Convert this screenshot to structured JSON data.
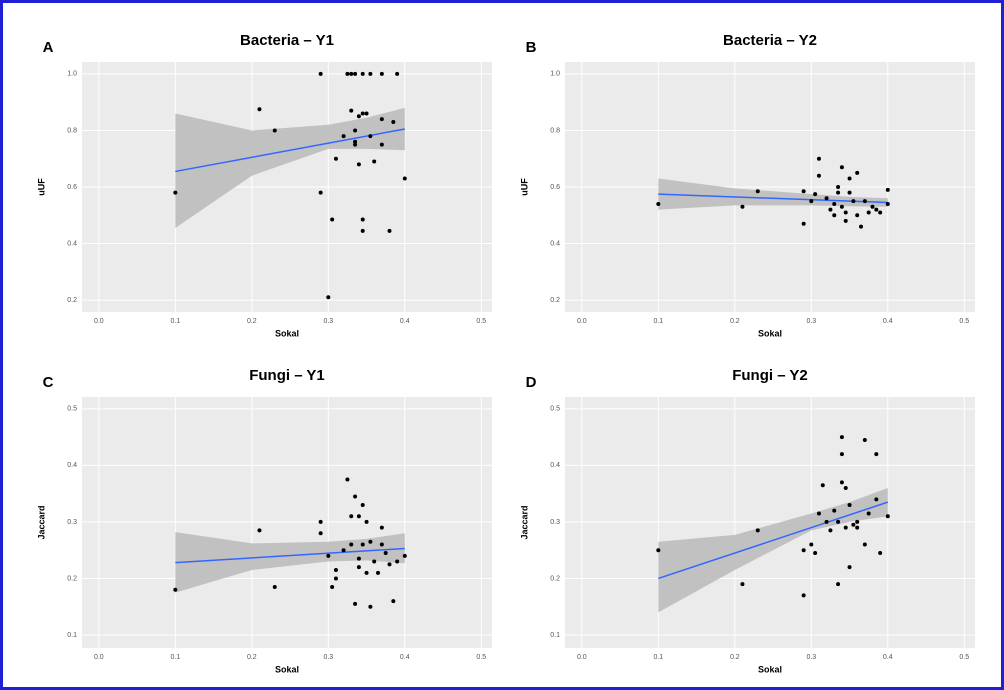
{
  "chart_data": [
    {
      "type": "scatter",
      "panel_label": "A",
      "title": "Bacteria – Y1",
      "x_label": "Sokal",
      "y_label": "uUF",
      "xlim": [
        -0.022,
        0.514
      ],
      "ylim": [
        0.158,
        1.042
      ],
      "xticks": [
        {
          "value": 0,
          "label": "0.0"
        },
        0.1,
        0.2,
        0.3,
        0.4,
        0.5
      ],
      "yticks": [
        0.2,
        0.4,
        0.6,
        0.8,
        {
          "value": 1,
          "label": "1.0"
        }
      ],
      "grid": true,
      "point_color": "#000000",
      "line_color": "#3366ff",
      "band_color": "#bdbdbd",
      "x": [
        0.1,
        0.21,
        0.23,
        0.29,
        0.29,
        0.3,
        0.305,
        0.31,
        0.32,
        0.325,
        0.33,
        0.33,
        0.335,
        0.335,
        0.335,
        0.335,
        0.34,
        0.34,
        0.345,
        0.345,
        0.345,
        0.345,
        0.35,
        0.355,
        0.355,
        0.36,
        0.37,
        0.37,
        0.37,
        0.38,
        0.385,
        0.39,
        0.4
      ],
      "values": [
        0.58,
        0.875,
        0.8,
        1.0,
        0.58,
        0.21,
        0.485,
        0.7,
        0.78,
        1.0,
        1.0,
        0.87,
        1.0,
        0.8,
        0.76,
        0.75,
        0.85,
        0.68,
        1.0,
        0.86,
        0.485,
        0.445,
        0.86,
        1.0,
        0.78,
        0.69,
        1.0,
        0.84,
        0.75,
        0.445,
        0.83,
        1.0,
        0.63
      ],
      "fit_x": [
        0.1,
        0.4
      ],
      "fit_values": [
        0.655,
        0.805
      ],
      "band_x": [
        0.1,
        0.2,
        0.3,
        0.35,
        0.4
      ],
      "band_lower": [
        0.455,
        0.64,
        0.735,
        0.735,
        0.73
      ],
      "band_upper": [
        0.86,
        0.8,
        0.82,
        0.845,
        0.88
      ]
    },
    {
      "type": "scatter",
      "panel_label": "B",
      "title": "Bacteria – Y2",
      "x_label": "Sokal",
      "y_label": "uUF",
      "xlim": [
        -0.022,
        0.514
      ],
      "ylim": [
        0.158,
        1.042
      ],
      "xticks": [
        {
          "value": 0,
          "label": "0.0"
        },
        0.1,
        0.2,
        0.3,
        0.4,
        0.5
      ],
      "yticks": [
        0.2,
        0.4,
        0.6,
        0.8,
        {
          "value": 1,
          "label": "1.0"
        }
      ],
      "grid": true,
      "point_color": "#000000",
      "line_color": "#3366ff",
      "band_color": "#bdbdbd",
      "x": [
        0.1,
        0.21,
        0.23,
        0.29,
        0.29,
        0.3,
        0.305,
        0.31,
        0.31,
        0.32,
        0.325,
        0.33,
        0.33,
        0.335,
        0.335,
        0.34,
        0.34,
        0.345,
        0.345,
        0.35,
        0.35,
        0.355,
        0.36,
        0.36,
        0.365,
        0.37,
        0.375,
        0.38,
        0.385,
        0.39,
        0.4,
        0.4
      ],
      "values": [
        0.54,
        0.53,
        0.585,
        0.585,
        0.47,
        0.55,
        0.575,
        0.7,
        0.64,
        0.56,
        0.52,
        0.5,
        0.54,
        0.58,
        0.6,
        0.67,
        0.53,
        0.48,
        0.51,
        0.58,
        0.63,
        0.55,
        0.65,
        0.5,
        0.46,
        0.55,
        0.51,
        0.53,
        0.52,
        0.51,
        0.59,
        0.54
      ],
      "fit_x": [
        0.1,
        0.4
      ],
      "fit_values": [
        0.575,
        0.545
      ],
      "band_x": [
        0.1,
        0.2,
        0.3,
        0.35,
        0.4
      ],
      "band_lower": [
        0.52,
        0.535,
        0.535,
        0.532,
        0.53
      ],
      "band_upper": [
        0.63,
        0.595,
        0.575,
        0.565,
        0.56
      ]
    },
    {
      "type": "scatter",
      "panel_label": "C",
      "title": "Fungi – Y1",
      "x_label": "Sokal",
      "y_label": "Jaccard",
      "xlim": [
        -0.022,
        0.514
      ],
      "ylim": [
        0.077,
        0.521
      ],
      "xticks": [
        {
          "value": 0,
          "label": "0.0"
        },
        0.1,
        0.2,
        0.3,
        0.4,
        0.5
      ],
      "yticks": [
        0.1,
        0.2,
        0.3,
        0.4,
        0.5
      ],
      "grid": true,
      "point_color": "#000000",
      "line_color": "#3366ff",
      "band_color": "#bdbdbd",
      "x": [
        0.1,
        0.21,
        0.23,
        0.29,
        0.29,
        0.3,
        0.305,
        0.31,
        0.31,
        0.32,
        0.325,
        0.33,
        0.33,
        0.335,
        0.335,
        0.34,
        0.34,
        0.34,
        0.345,
        0.345,
        0.35,
        0.35,
        0.355,
        0.355,
        0.36,
        0.365,
        0.37,
        0.37,
        0.375,
        0.38,
        0.385,
        0.39,
        0.4
      ],
      "values": [
        0.18,
        0.285,
        0.185,
        0.3,
        0.28,
        0.24,
        0.185,
        0.215,
        0.2,
        0.25,
        0.375,
        0.31,
        0.26,
        0.155,
        0.345,
        0.31,
        0.22,
        0.235,
        0.33,
        0.26,
        0.21,
        0.3,
        0.15,
        0.265,
        0.23,
        0.21,
        0.29,
        0.26,
        0.245,
        0.225,
        0.16,
        0.23,
        0.24
      ],
      "fit_x": [
        0.1,
        0.4
      ],
      "fit_values": [
        0.228,
        0.253
      ],
      "band_x": [
        0.1,
        0.2,
        0.3,
        0.35,
        0.4
      ],
      "band_lower": [
        0.175,
        0.215,
        0.23,
        0.232,
        0.227
      ],
      "band_upper": [
        0.282,
        0.262,
        0.265,
        0.27,
        0.28
      ]
    },
    {
      "type": "scatter",
      "panel_label": "D",
      "title": "Fungi – Y2",
      "x_label": "Sokal",
      "y_label": "Jaccard",
      "xlim": [
        -0.022,
        0.514
      ],
      "ylim": [
        0.077,
        0.521
      ],
      "xticks": [
        {
          "value": 0,
          "label": "0.0"
        },
        0.1,
        0.2,
        0.3,
        0.4,
        0.5
      ],
      "yticks": [
        0.1,
        0.2,
        0.3,
        0.4,
        0.5
      ],
      "grid": true,
      "point_color": "#000000",
      "line_color": "#3366ff",
      "band_color": "#bdbdbd",
      "x": [
        0.1,
        0.21,
        0.23,
        0.29,
        0.29,
        0.3,
        0.305,
        0.31,
        0.315,
        0.32,
        0.325,
        0.33,
        0.335,
        0.335,
        0.34,
        0.34,
        0.34,
        0.345,
        0.345,
        0.35,
        0.35,
        0.355,
        0.36,
        0.36,
        0.37,
        0.37,
        0.375,
        0.385,
        0.385,
        0.39,
        0.4
      ],
      "values": [
        0.25,
        0.19,
        0.285,
        0.25,
        0.17,
        0.26,
        0.245,
        0.315,
        0.365,
        0.3,
        0.285,
        0.32,
        0.3,
        0.19,
        0.45,
        0.42,
        0.37,
        0.36,
        0.29,
        0.33,
        0.22,
        0.295,
        0.3,
        0.29,
        0.445,
        0.26,
        0.315,
        0.34,
        0.42,
        0.245,
        0.31
      ],
      "fit_x": [
        0.1,
        0.4
      ],
      "fit_values": [
        0.2,
        0.335
      ],
      "band_x": [
        0.1,
        0.2,
        0.3,
        0.35,
        0.4
      ],
      "band_lower": [
        0.14,
        0.215,
        0.285,
        0.3,
        0.31
      ],
      "band_upper": [
        0.265,
        0.277,
        0.315,
        0.335,
        0.36
      ]
    }
  ]
}
